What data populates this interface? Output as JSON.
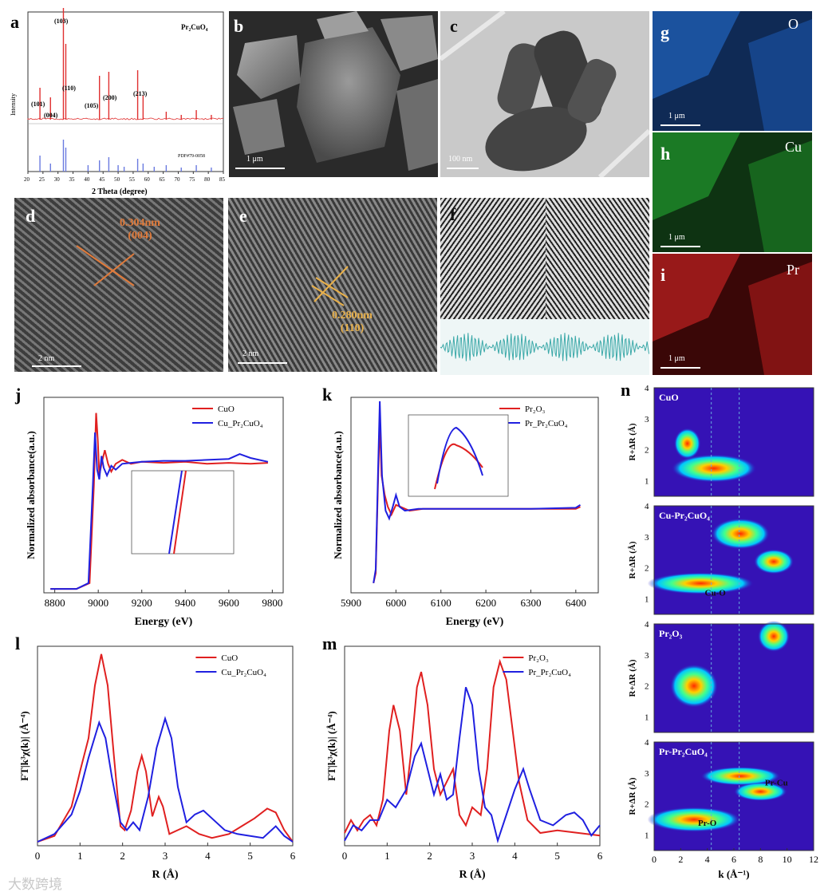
{
  "panels": {
    "a": {
      "letter": "a",
      "compound": "Pr₂CuO₄",
      "ylabel": "Intensity",
      "xlabel": "2 Theta (degree)",
      "ref_label": "PDF#79-0058",
      "peaks": [
        "(103)",
        "(110)",
        "(101)",
        "(004)",
        "(105)",
        "(200)",
        "(213)"
      ],
      "xticks": [
        "20",
        "25",
        "30",
        "35",
        "40",
        "45",
        "50",
        "55",
        "60",
        "65",
        "70",
        "75",
        "80",
        "85"
      ]
    },
    "b": {
      "letter": "b",
      "scale": "1 μm"
    },
    "c": {
      "letter": "c",
      "scale": "100 nm"
    },
    "d": {
      "letter": "d",
      "spacing": "0.304nm",
      "plane": "(004)",
      "scale": "2 nm"
    },
    "e": {
      "letter": "e",
      "spacing": "0.280nm",
      "plane": "(110)",
      "scale": "2 nm"
    },
    "f": {
      "letter": "f"
    },
    "g": {
      "letter": "g",
      "element": "O",
      "scale": "1 μm"
    },
    "h": {
      "letter": "h",
      "element": "Cu",
      "scale": "1 μm"
    },
    "i": {
      "letter": "i",
      "element": "Pr",
      "scale": "1 μm"
    }
  },
  "chart_data": [
    {
      "id": "j",
      "type": "line",
      "letter": "j",
      "xlabel": "Energy (eV)",
      "ylabel": "Normalized absorbance(a.u.)",
      "xlim": [
        8750,
        9850
      ],
      "xticks": [
        8800,
        9000,
        9200,
        9400,
        9600,
        9800
      ],
      "series": [
        {
          "name": "CuO",
          "color": "#e02020",
          "points": [
            [
              8780,
              0.02
            ],
            [
              8900,
              0.02
            ],
            [
              8960,
              0.05
            ],
            [
              8980,
              0.55
            ],
            [
              8990,
              0.92
            ],
            [
              8998,
              0.78
            ],
            [
              9005,
              0.6
            ],
            [
              9015,
              0.66
            ],
            [
              9030,
              0.73
            ],
            [
              9045,
              0.66
            ],
            [
              9060,
              0.62
            ],
            [
              9080,
              0.66
            ],
            [
              9110,
              0.68
            ],
            [
              9150,
              0.66
            ],
            [
              9200,
              0.67
            ],
            [
              9300,
              0.665
            ],
            [
              9400,
              0.67
            ],
            [
              9500,
              0.66
            ],
            [
              9600,
              0.665
            ],
            [
              9700,
              0.66
            ],
            [
              9780,
              0.665
            ]
          ]
        },
        {
          "name": "Cu_Pr₂CuO₄",
          "color": "#2020e0",
          "points": [
            [
              8780,
              0.02
            ],
            [
              8900,
              0.02
            ],
            [
              8955,
              0.05
            ],
            [
              8975,
              0.55
            ],
            [
              8985,
              0.82
            ],
            [
              8995,
              0.63
            ],
            [
              9005,
              0.58
            ],
            [
              9015,
              0.7
            ],
            [
              9025,
              0.64
            ],
            [
              9040,
              0.6
            ],
            [
              9060,
              0.65
            ],
            [
              9080,
              0.63
            ],
            [
              9110,
              0.66
            ],
            [
              9150,
              0.665
            ],
            [
              9200,
              0.67
            ],
            [
              9300,
              0.675
            ],
            [
              9400,
              0.675
            ],
            [
              9500,
              0.68
            ],
            [
              9600,
              0.685
            ],
            [
              9650,
              0.71
            ],
            [
              9700,
              0.69
            ],
            [
              9780,
              0.67
            ]
          ]
        }
      ]
    },
    {
      "id": "k",
      "type": "line",
      "letter": "k",
      "xlabel": "Energy (eV)",
      "ylabel": "Normalized absorbance(a.u.)",
      "xlim": [
        5900,
        6450
      ],
      "xticks": [
        5900,
        6000,
        6100,
        6200,
        6300,
        6400
      ],
      "series": [
        {
          "name": "Pr₂O₃",
          "color": "#e02020",
          "points": [
            [
              5950,
              0.05
            ],
            [
              5955,
              0.1
            ],
            [
              5960,
              0.55
            ],
            [
              5964,
              0.88
            ],
            [
              5968,
              0.6
            ],
            [
              5975,
              0.5
            ],
            [
              5982,
              0.44
            ],
            [
              5990,
              0.4
            ],
            [
              6000,
              0.45
            ],
            [
              6010,
              0.44
            ],
            [
              6030,
              0.42
            ],
            [
              6060,
              0.43
            ],
            [
              6100,
              0.43
            ],
            [
              6200,
              0.43
            ],
            [
              6300,
              0.43
            ],
            [
              6400,
              0.43
            ],
            [
              6410,
              0.44
            ]
          ]
        },
        {
          "name": "Pr_Pr₂CuO₄",
          "color": "#2020e0",
          "points": [
            [
              5950,
              0.05
            ],
            [
              5955,
              0.12
            ],
            [
              5960,
              0.6
            ],
            [
              5964,
              0.98
            ],
            [
              5969,
              0.6
            ],
            [
              5977,
              0.42
            ],
            [
              5985,
              0.38
            ],
            [
              5993,
              0.44
            ],
            [
              6000,
              0.5
            ],
            [
              6008,
              0.44
            ],
            [
              6020,
              0.42
            ],
            [
              6050,
              0.43
            ],
            [
              6100,
              0.43
            ],
            [
              6200,
              0.43
            ],
            [
              6300,
              0.43
            ],
            [
              6400,
              0.435
            ],
            [
              6410,
              0.45
            ]
          ]
        }
      ]
    },
    {
      "id": "l",
      "type": "line",
      "letter": "l",
      "xlabel": "R (Å)",
      "ylabel": "FT|k³χ(k)| (Å⁻⁴)",
      "xlim": [
        0,
        6
      ],
      "xticks": [
        0,
        1,
        2,
        3,
        4,
        5,
        6
      ],
      "series": [
        {
          "name": "CuO",
          "color": "#e02020",
          "points": [
            [
              0,
              0.02
            ],
            [
              0.4,
              0.05
            ],
            [
              0.8,
              0.2
            ],
            [
              1.0,
              0.38
            ],
            [
              1.2,
              0.55
            ],
            [
              1.35,
              0.82
            ],
            [
              1.5,
              0.98
            ],
            [
              1.65,
              0.82
            ],
            [
              1.8,
              0.45
            ],
            [
              1.95,
              0.1
            ],
            [
              2.05,
              0.08
            ],
            [
              2.2,
              0.18
            ],
            [
              2.35,
              0.38
            ],
            [
              2.45,
              0.46
            ],
            [
              2.55,
              0.38
            ],
            [
              2.7,
              0.15
            ],
            [
              2.85,
              0.25
            ],
            [
              2.95,
              0.2
            ],
            [
              3.1,
              0.06
            ],
            [
              3.3,
              0.08
            ],
            [
              3.5,
              0.1
            ],
            [
              3.8,
              0.06
            ],
            [
              4.1,
              0.04
            ],
            [
              4.5,
              0.06
            ],
            [
              4.8,
              0.1
            ],
            [
              5.1,
              0.14
            ],
            [
              5.4,
              0.19
            ],
            [
              5.6,
              0.17
            ],
            [
              5.8,
              0.08
            ],
            [
              6,
              0.02
            ]
          ]
        },
        {
          "name": "Cu_Pr₂CuO₄",
          "color": "#2020e0",
          "points": [
            [
              0,
              0.02
            ],
            [
              0.4,
              0.06
            ],
            [
              0.8,
              0.16
            ],
            [
              1.0,
              0.28
            ],
            [
              1.2,
              0.45
            ],
            [
              1.45,
              0.63
            ],
            [
              1.6,
              0.55
            ],
            [
              1.75,
              0.35
            ],
            [
              1.95,
              0.12
            ],
            [
              2.1,
              0.08
            ],
            [
              2.25,
              0.12
            ],
            [
              2.4,
              0.08
            ],
            [
              2.6,
              0.25
            ],
            [
              2.8,
              0.5
            ],
            [
              3.0,
              0.65
            ],
            [
              3.15,
              0.55
            ],
            [
              3.3,
              0.3
            ],
            [
              3.5,
              0.12
            ],
            [
              3.7,
              0.16
            ],
            [
              3.9,
              0.18
            ],
            [
              4.1,
              0.14
            ],
            [
              4.4,
              0.08
            ],
            [
              4.7,
              0.06
            ],
            [
              5.0,
              0.05
            ],
            [
              5.3,
              0.04
            ],
            [
              5.6,
              0.1
            ],
            [
              5.8,
              0.05
            ],
            [
              6,
              0.02
            ]
          ]
        }
      ]
    },
    {
      "id": "m",
      "type": "line",
      "letter": "m",
      "xlabel": "R (Å)",
      "ylabel": "FT|k³χ(k)| (Å⁻⁴)",
      "xlim": [
        0,
        6
      ],
      "xticks": [
        0,
        1,
        2,
        3,
        4,
        5,
        6
      ],
      "series": [
        {
          "name": "Pr₂O₃",
          "color": "#e02020",
          "points": [
            [
              0,
              0.05
            ],
            [
              0.15,
              0.1
            ],
            [
              0.3,
              0.06
            ],
            [
              0.45,
              0.1
            ],
            [
              0.6,
              0.12
            ],
            [
              0.75,
              0.08
            ],
            [
              0.9,
              0.18
            ],
            [
              1.05,
              0.45
            ],
            [
              1.15,
              0.55
            ],
            [
              1.3,
              0.45
            ],
            [
              1.45,
              0.2
            ],
            [
              1.55,
              0.35
            ],
            [
              1.7,
              0.62
            ],
            [
              1.8,
              0.68
            ],
            [
              1.95,
              0.55
            ],
            [
              2.1,
              0.3
            ],
            [
              2.25,
              0.2
            ],
            [
              2.4,
              0.25
            ],
            [
              2.55,
              0.3
            ],
            [
              2.7,
              0.12
            ],
            [
              2.85,
              0.08
            ],
            [
              3.0,
              0.15
            ],
            [
              3.2,
              0.12
            ],
            [
              3.35,
              0.3
            ],
            [
              3.5,
              0.62
            ],
            [
              3.65,
              0.72
            ],
            [
              3.8,
              0.65
            ],
            [
              3.95,
              0.45
            ],
            [
              4.1,
              0.25
            ],
            [
              4.3,
              0.1
            ],
            [
              4.6,
              0.05
            ],
            [
              5.0,
              0.06
            ],
            [
              5.5,
              0.05
            ],
            [
              6,
              0.04
            ]
          ]
        },
        {
          "name": "Pr_Pr₂CuO₄",
          "color": "#2020e0",
          "points": [
            [
              0,
              0.02
            ],
            [
              0.2,
              0.08
            ],
            [
              0.4,
              0.06
            ],
            [
              0.6,
              0.1
            ],
            [
              0.8,
              0.1
            ],
            [
              1.0,
              0.18
            ],
            [
              1.2,
              0.15
            ],
            [
              1.45,
              0.22
            ],
            [
              1.65,
              0.35
            ],
            [
              1.8,
              0.4
            ],
            [
              1.95,
              0.3
            ],
            [
              2.1,
              0.2
            ],
            [
              2.25,
              0.28
            ],
            [
              2.4,
              0.18
            ],
            [
              2.55,
              0.2
            ],
            [
              2.7,
              0.42
            ],
            [
              2.85,
              0.62
            ],
            [
              3.0,
              0.55
            ],
            [
              3.15,
              0.3
            ],
            [
              3.3,
              0.15
            ],
            [
              3.45,
              0.12
            ],
            [
              3.6,
              0.02
            ],
            [
              3.8,
              0.12
            ],
            [
              4.0,
              0.22
            ],
            [
              4.2,
              0.3
            ],
            [
              4.35,
              0.22
            ],
            [
              4.6,
              0.1
            ],
            [
              4.9,
              0.08
            ],
            [
              5.2,
              0.12
            ],
            [
              5.4,
              0.13
            ],
            [
              5.6,
              0.1
            ],
            [
              5.8,
              0.04
            ],
            [
              6,
              0.08
            ]
          ]
        }
      ]
    },
    {
      "id": "n",
      "type": "heatmap",
      "letter": "n",
      "xlabel": "k (Å⁻¹)",
      "ylabel": "R+ΔR (Å)",
      "xlim": [
        0,
        12
      ],
      "ylim": [
        0.5,
        4
      ],
      "xticks": [
        0,
        2,
        4,
        6,
        8,
        10,
        12
      ],
      "yticks": [
        1,
        2,
        3,
        4
      ],
      "subplots": [
        {
          "title": "CuO",
          "annotations": []
        },
        {
          "title": "Cu-Pr₂CuO₄",
          "annotations": [
            "Cu-O"
          ]
        },
        {
          "title": "Pr₂O₃",
          "annotations": []
        },
        {
          "title": "Pr-Pr₂CuO₄",
          "annotations": [
            "Pr-Cu",
            "Pr-O"
          ]
        }
      ]
    }
  ],
  "watermark": "大数跨境"
}
